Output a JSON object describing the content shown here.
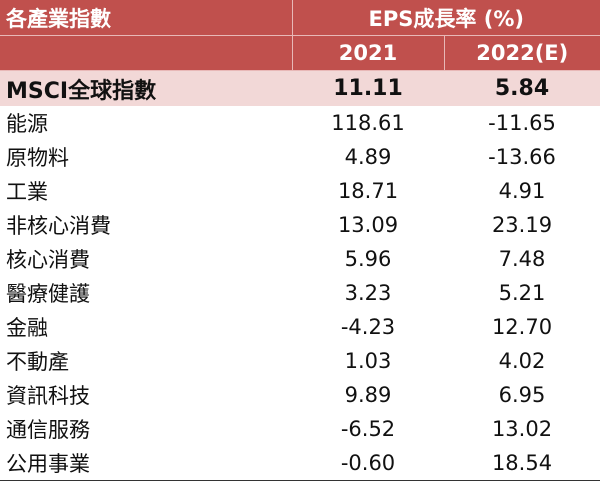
{
  "header": {
    "sector_label": "各產業指數",
    "metric_label": "EPS成長率 (%)",
    "year1": "2021",
    "year2": "2022(E)"
  },
  "rows": [
    {
      "name": "MSCI全球指數",
      "v2021": "11.11",
      "v2022": "5.84"
    },
    {
      "name": "能源",
      "v2021": "118.61",
      "v2022": "-11.65"
    },
    {
      "name": "原物料",
      "v2021": "4.89",
      "v2022": "-13.66"
    },
    {
      "name": "工業",
      "v2021": "18.71",
      "v2022": "4.91"
    },
    {
      "name": "非核心消費",
      "v2021": "13.09",
      "v2022": "23.19"
    },
    {
      "name": "核心消費",
      "v2021": "5.96",
      "v2022": "7.48"
    },
    {
      "name": "醫療健護",
      "v2021": "3.23",
      "v2022": "5.21"
    },
    {
      "name": "金融",
      "v2021": "-4.23",
      "v2022": "12.70"
    },
    {
      "name": "不動產",
      "v2021": "1.03",
      "v2022": "4.02"
    },
    {
      "name": "資訊科技",
      "v2021": "9.89",
      "v2022": "6.95"
    },
    {
      "name": "通信服務",
      "v2021": "-6.52",
      "v2022": "13.02"
    },
    {
      "name": "公用事業",
      "v2021": "-0.60",
      "v2022": "18.54"
    }
  ],
  "colors": {
    "header_bg": "#c0504d",
    "header_text": "#ffffff",
    "highlight_row_bg": "#f2d8d7"
  }
}
